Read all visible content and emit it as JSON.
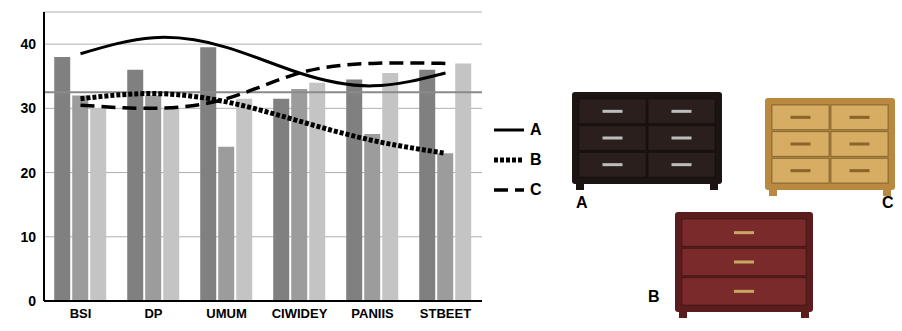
{
  "chart_data": {
    "type": "bar",
    "categories": [
      "BSI",
      "DP",
      "UMUM",
      "CIWIDEY",
      "PANIIS",
      "STBEET"
    ],
    "series": [
      {
        "type": "bar",
        "color": "#808080",
        "values": [
          38,
          36,
          39.5,
          31.5,
          34.5,
          36
        ]
      },
      {
        "type": "bar",
        "color": "#9c9c9c",
        "values": [
          32,
          32,
          24,
          33,
          26,
          23
        ]
      },
      {
        "type": "bar",
        "color": "#c4c4c4",
        "values": [
          30,
          30,
          31.5,
          34,
          35.5,
          37
        ]
      },
      {
        "name": "A",
        "type": "line",
        "color": "#000000",
        "line_style": "solid",
        "values": [
          38.5,
          41,
          39.5,
          35.5,
          33.5,
          35.5
        ]
      },
      {
        "name": "B",
        "type": "line",
        "color": "#000000",
        "line_style": "dotted",
        "values": [
          31.5,
          32.3,
          31,
          28,
          25,
          23
        ]
      },
      {
        "name": "C",
        "type": "line",
        "color": "#000000",
        "line_style": "dashed",
        "values": [
          30.5,
          30,
          31.5,
          35.5,
          37,
          37
        ]
      }
    ],
    "ylim": [
      0,
      45
    ],
    "yticks": [
      0,
      10,
      20,
      30,
      40
    ],
    "grid": true,
    "legend": "right",
    "reference_y": 32.5
  },
  "pictures": {
    "labels": [
      "A",
      "B",
      "C"
    ]
  }
}
